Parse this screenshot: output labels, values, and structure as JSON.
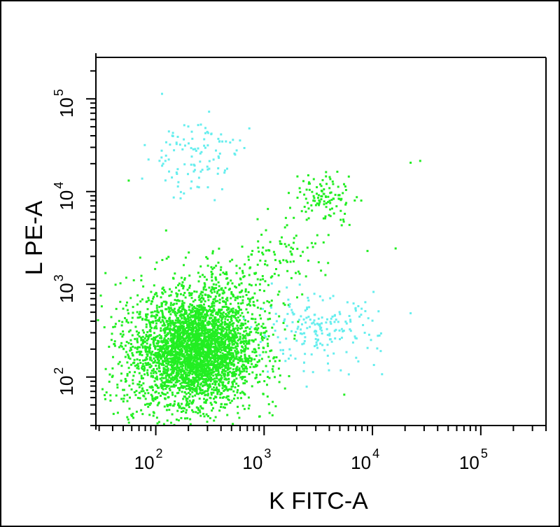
{
  "chart_data": {
    "type": "scatter",
    "title": "",
    "xlabel": "K FITC-A",
    "ylabel": "L PE-A",
    "x_scale": "log",
    "y_scale": "log",
    "xlim": [
      28,
      400000
    ],
    "ylim": [
      30,
      280000
    ],
    "x_ticks": [
      {
        "value": 100,
        "base": "10",
        "exp": "2"
      },
      {
        "value": 1000,
        "base": "10",
        "exp": "3"
      },
      {
        "value": 10000,
        "base": "10",
        "exp": "4"
      },
      {
        "value": 100000,
        "base": "10",
        "exp": "5"
      }
    ],
    "y_ticks": [
      {
        "value": 100,
        "base": "10",
        "exp": "2"
      },
      {
        "value": 1000,
        "base": "10",
        "exp": "3"
      },
      {
        "value": 10000,
        "base": "10",
        "exp": "4"
      },
      {
        "value": 100000,
        "base": "10",
        "exp": "5"
      }
    ],
    "grid": false,
    "legend": "none",
    "series": [
      {
        "color": "#22ee22",
        "populations": [
          {
            "center": [
              230,
              200
            ],
            "spread": [
              0.26,
              0.28
            ],
            "count": 2600
          },
          {
            "center": [
              170,
              160
            ],
            "spread": [
              0.35,
              0.42
            ],
            "count": 900
          },
          {
            "center": [
              500,
              600
            ],
            "spread": [
              0.25,
              0.25
            ],
            "count": 300
          },
          {
            "center": [
              1500,
              2500
            ],
            "spread": [
              0.18,
              0.18
            ],
            "count": 70
          },
          {
            "center": [
              3600,
              9000
            ],
            "spread": [
              0.14,
              0.14
            ],
            "count": 110
          }
        ],
        "points": [
          [
            55,
            13500
          ],
          [
            3500,
            7500
          ],
          [
            16000,
            2500
          ],
          [
            22000,
            21000
          ],
          [
            27000,
            22000
          ],
          [
            8800,
            2350
          ]
        ]
      },
      {
        "color": "#66eeee",
        "populations": [
          {
            "center": [
              210,
              25000
            ],
            "spread": [
              0.22,
              0.22
            ],
            "count": 110
          },
          {
            "center": [
              3000,
              320
            ],
            "spread": [
              0.28,
              0.18
            ],
            "count": 190
          }
        ],
        "points": [
          [
            22000,
            500
          ],
          [
            12000,
            110
          ],
          [
            10000,
            850
          ]
        ]
      }
    ]
  }
}
